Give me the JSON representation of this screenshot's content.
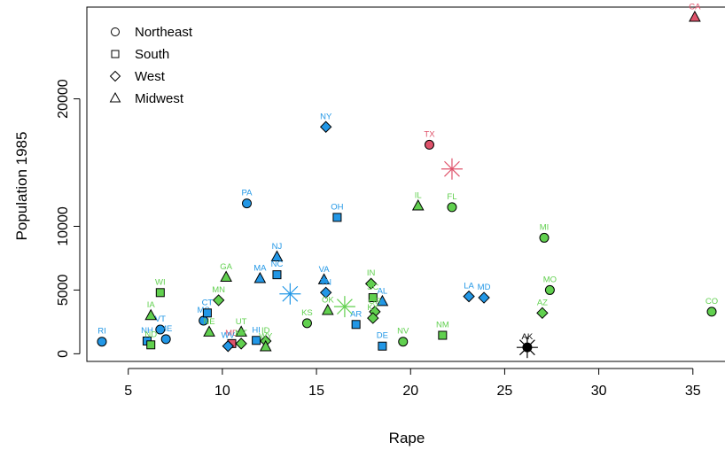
{
  "chart_data": {
    "type": "scatter",
    "xlabel": "Rape",
    "ylabel": "Population 1985",
    "xlim": [
      2.8,
      36.8
    ],
    "ylim": [
      -600,
      27200
    ],
    "xticks": [
      5,
      10,
      15,
      20,
      25,
      30,
      35
    ],
    "yticks": [
      0,
      5000,
      10000,
      20000
    ],
    "legend": {
      "position": "top-left",
      "entries": [
        {
          "name": "Northeast",
          "shape": "circle"
        },
        {
          "name": "South",
          "shape": "square"
        },
        {
          "name": "West",
          "shape": "diamond"
        },
        {
          "name": "Midwest",
          "shape": "triangle"
        }
      ]
    },
    "cluster_colors": {
      "1": "#DF536B",
      "2": "#2297E6",
      "3": "#61D04F",
      "4": "#000000"
    },
    "centers": [
      {
        "cluster": "1",
        "x": 22.2,
        "y": 14500
      },
      {
        "cluster": "2",
        "x": 13.6,
        "y": 4700
      },
      {
        "cluster": "3",
        "x": 16.5,
        "y": 3700
      },
      {
        "cluster": "4",
        "x": 26.2,
        "y": 500
      }
    ],
    "points": [
      {
        "label": "CA",
        "x": 35.1,
        "y": 26400,
        "shape": "triangle",
        "cluster": "1"
      },
      {
        "label": "TX",
        "x": 21.0,
        "y": 16400,
        "shape": "circle",
        "cluster": "1"
      },
      {
        "label": "MD",
        "x": 10.5,
        "y": 800,
        "shape": "square",
        "cluster": "1"
      },
      {
        "label": "NY",
        "x": 15.5,
        "y": 17800,
        "shape": "diamond",
        "cluster": "2"
      },
      {
        "label": "PA",
        "x": 11.3,
        "y": 11800,
        "shape": "circle",
        "cluster": "2"
      },
      {
        "label": "OH",
        "x": 16.1,
        "y": 10700,
        "shape": "square",
        "cluster": "2"
      },
      {
        "label": "NJ",
        "x": 12.9,
        "y": 7600,
        "shape": "triangle",
        "cluster": "2"
      },
      {
        "label": "NC",
        "x": 12.9,
        "y": 6200,
        "shape": "square",
        "cluster": "2"
      },
      {
        "label": "MA",
        "x": 12.0,
        "y": 5900,
        "shape": "triangle",
        "cluster": "2"
      },
      {
        "label": "VA",
        "x": 15.4,
        "y": 5800,
        "shape": "triangle",
        "cluster": "2"
      },
      {
        "label": "TN",
        "x": 15.5,
        "y": 4800,
        "shape": "diamond",
        "cluster": "2"
      },
      {
        "label": "LA",
        "x": 23.1,
        "y": 4500,
        "shape": "diamond",
        "cluster": "2"
      },
      {
        "label": "MD",
        "x": 23.9,
        "y": 4400,
        "shape": "diamond",
        "cluster": "2"
      },
      {
        "label": "AL",
        "x": 18.5,
        "y": 4100,
        "shape": "triangle",
        "cluster": "2"
      },
      {
        "label": "AR",
        "x": 17.1,
        "y": 2300,
        "shape": "square",
        "cluster": "2"
      },
      {
        "label": "DE",
        "x": 18.5,
        "y": 600,
        "shape": "square",
        "cluster": "2"
      },
      {
        "label": "RI",
        "x": 3.6,
        "y": 950,
        "shape": "circle",
        "cluster": "2"
      },
      {
        "label": "NH",
        "x": 6.0,
        "y": 1000,
        "shape": "square",
        "cluster": "2"
      },
      {
        "label": "VT",
        "x": 6.7,
        "y": 1900,
        "shape": "circle",
        "cluster": "2"
      },
      {
        "label": "ME",
        "x": 7.0,
        "y": 1150,
        "shape": "circle",
        "cluster": "2"
      },
      {
        "label": "MS",
        "x": 9.0,
        "y": 2600,
        "shape": "circle",
        "cluster": "2"
      },
      {
        "label": "CT",
        "x": 9.2,
        "y": 3200,
        "shape": "square",
        "cluster": "2"
      },
      {
        "label": "WV",
        "x": 10.3,
        "y": 600,
        "shape": "diamond",
        "cluster": "2"
      },
      {
        "label": "HI",
        "x": 11.8,
        "y": 1050,
        "shape": "square",
        "cluster": "2"
      },
      {
        "label": "MI",
        "x": 27.1,
        "y": 9100,
        "shape": "circle",
        "cluster": "3"
      },
      {
        "label": "FL",
        "x": 22.2,
        "y": 11500,
        "shape": "circle",
        "cluster": "3"
      },
      {
        "label": "IL",
        "x": 20.4,
        "y": 11600,
        "shape": "triangle",
        "cluster": "3"
      },
      {
        "label": "MO",
        "x": 27.4,
        "y": 5000,
        "shape": "circle",
        "cluster": "3"
      },
      {
        "label": "CO",
        "x": 36.0,
        "y": 3300,
        "shape": "circle",
        "cluster": "3"
      },
      {
        "label": "AZ",
        "x": 27.0,
        "y": 3200,
        "shape": "diamond",
        "cluster": "3"
      },
      {
        "label": "WI",
        "x": 6.7,
        "y": 4800,
        "shape": "square",
        "cluster": "3"
      },
      {
        "label": "GA",
        "x": 10.2,
        "y": 6000,
        "shape": "triangle",
        "cluster": "3"
      },
      {
        "label": "MN",
        "x": 9.8,
        "y": 4200,
        "shape": "diamond",
        "cluster": "3"
      },
      {
        "label": "IN",
        "x": 17.9,
        "y": 5500,
        "shape": "diamond",
        "cluster": "3"
      },
      {
        "label": "SC",
        "x": 18.0,
        "y": 4400,
        "shape": "square",
        "cluster": "3"
      },
      {
        "label": "OK",
        "x": 15.6,
        "y": 3400,
        "shape": "triangle",
        "cluster": "3"
      },
      {
        "label": "OR",
        "x": 18.1,
        "y": 3300,
        "shape": "diamond",
        "cluster": "3"
      },
      {
        "label": "KY",
        "x": 18.0,
        "y": 2800,
        "shape": "diamond",
        "cluster": "3"
      },
      {
        "label": "KS",
        "x": 14.5,
        "y": 2400,
        "shape": "circle",
        "cluster": "3"
      },
      {
        "label": "IA",
        "x": 6.2,
        "y": 3000,
        "shape": "triangle",
        "cluster": "3"
      },
      {
        "label": "NE",
        "x": 9.3,
        "y": 1700,
        "shape": "triangle",
        "cluster": "3"
      },
      {
        "label": "UT",
        "x": 11.0,
        "y": 1700,
        "shape": "triangle",
        "cluster": "3"
      },
      {
        "label": "ND",
        "x": 6.2,
        "y": 700,
        "shape": "square",
        "cluster": "3"
      },
      {
        "label": "ID",
        "x": 12.3,
        "y": 1000,
        "shape": "diamond",
        "cluster": "3"
      },
      {
        "label": "MT",
        "x": 11.0,
        "y": 800,
        "shape": "diamond",
        "cluster": "3"
      },
      {
        "label": "WY",
        "x": 12.3,
        "y": 550,
        "shape": "triangle",
        "cluster": "3"
      },
      {
        "label": "NM",
        "x": 21.7,
        "y": 1450,
        "shape": "square",
        "cluster": "3"
      },
      {
        "label": "NV",
        "x": 19.6,
        "y": 950,
        "shape": "circle",
        "cluster": "3"
      },
      {
        "label": "AK",
        "x": 26.2,
        "y": 500,
        "shape": "circle",
        "cluster": "4"
      }
    ]
  }
}
